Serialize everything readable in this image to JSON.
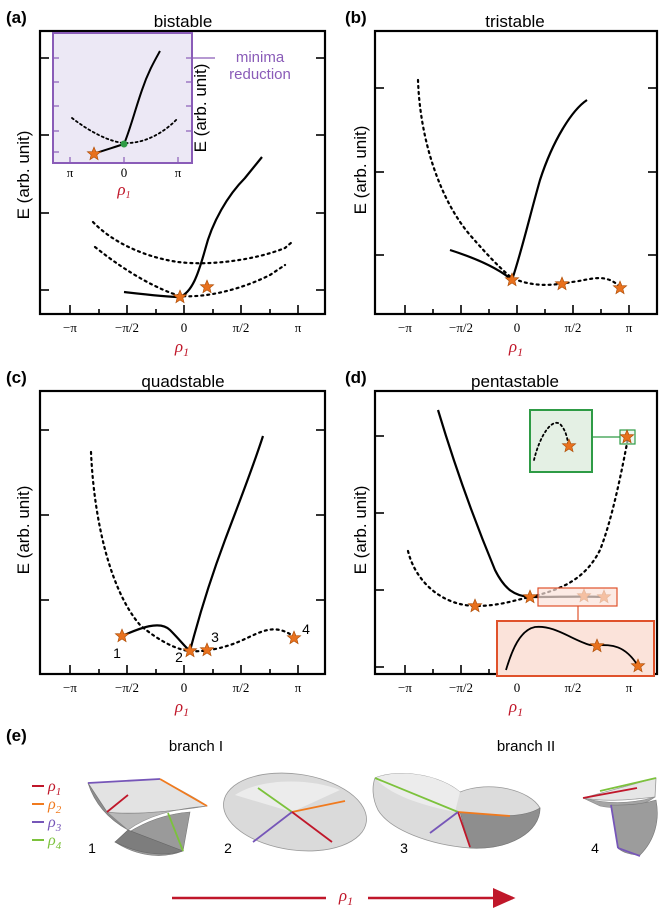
{
  "colors": {
    "star": "#e8711e",
    "star_stroke": "#a84800",
    "accent_red": "#c0172a",
    "purple": "#8a5cb8",
    "green": "#2e9b45",
    "rho1": "#c0172a",
    "rho2": "#f07a1e",
    "rho3": "#7656b8",
    "rho4": "#7cc23c",
    "inset_purple_bg": "#ece8f5",
    "inset_green_bg": "#e4f0e4",
    "inset_red_bg": "#fbe3da"
  },
  "panels": [
    {
      "label": "(a)",
      "title": "bistable",
      "ylabel": "E (arb. unit)",
      "xlabel": "ρ",
      "xticks": [
        "−π",
        "−π/2",
        "0",
        "π/2",
        "π"
      ],
      "xlim": [
        -3.5,
        3.5
      ]
    },
    {
      "label": "(b)",
      "title": "tristable",
      "ylabel": "E (arb. unit)",
      "xlabel": "ρ",
      "xticks": [
        "−π",
        "−π/2",
        "0",
        "π/2",
        "π"
      ],
      "xlim": [
        -3.5,
        3.5
      ]
    },
    {
      "label": "(c)",
      "title": "quadstable",
      "ylabel": "E (arb. unit)",
      "xlabel": "ρ",
      "xticks": [
        "−π",
        "−π/2",
        "0",
        "π/2",
        "π"
      ],
      "xlim": [
        -3.5,
        3.5
      ],
      "state_numbers": [
        "1",
        "2",
        "3",
        "4"
      ]
    },
    {
      "label": "(d)",
      "title": "pentastable",
      "ylabel": "E (arb. unit)",
      "xlabel": "ρ",
      "xticks": [
        "−π",
        "−π/2",
        "0",
        "π/2",
        "π"
      ],
      "xlim": [
        -3.5,
        3.5
      ]
    }
  ],
  "x_subscript": "1",
  "inset_a": {
    "ylabel": "E (arb. unit)",
    "xlabel": "ρ",
    "xticks": [
      "π",
      "0",
      "π"
    ],
    "note_line1": "minima",
    "note_line2": "reduction"
  },
  "panel_e": {
    "label": "(e)",
    "branch1": "branch I",
    "branch2": "branch II",
    "legend": [
      {
        "name": "ρ",
        "sub": "1"
      },
      {
        "name": "ρ",
        "sub": "2"
      },
      {
        "name": "ρ",
        "sub": "3"
      },
      {
        "name": "ρ",
        "sub": "4"
      }
    ],
    "shape_numbers": [
      "1",
      "2",
      "3",
      "4"
    ],
    "arrow_label": "ρ",
    "arrow_sub": "1"
  }
}
